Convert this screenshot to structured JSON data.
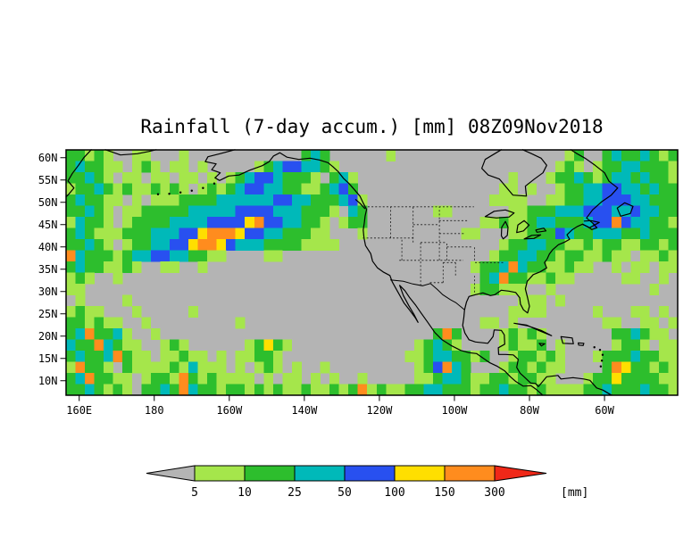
{
  "title": "Rainfall (7-day accum.) [mm] 08Z09Nov2018",
  "chart_data": {
    "type": "heatmap",
    "title": "Rainfall (7-day accum.) [mm] 08Z09Nov2018",
    "variable": "7-day accumulated rainfall",
    "units": "mm",
    "valid_time_label": "08Z09Nov2018",
    "x_tick_labels": [
      "160E",
      "180",
      "160W",
      "140W",
      "120W",
      "100W",
      "80W",
      "60W"
    ],
    "x_tick_lons_deg_east": [
      160,
      180,
      200,
      220,
      240,
      260,
      280,
      300
    ],
    "y_tick_labels": [
      "60N",
      "55N",
      "50N",
      "45N",
      "40N",
      "35N",
      "30N",
      "25N",
      "20N",
      "15N",
      "10N"
    ],
    "y_tick_lats": [
      60,
      55,
      50,
      45,
      40,
      35,
      30,
      25,
      20,
      15,
      10
    ],
    "lon_range_deg_east": [
      156.5,
      319.5
    ],
    "lat_range_deg_north": [
      6.75,
      61.75
    ],
    "levels_mm": [
      5,
      10,
      25,
      50,
      100,
      150,
      300
    ],
    "grid_lines": false,
    "legend_position": "bottom-center",
    "grid": {
      "cols": 65,
      "rows": 22,
      "cell_size_deg": 2.5,
      "origin": "top-left = 61.75N, 156.5E",
      "encoding": "each char = rainfall class 0-7: 0=<5mm(gray) 1=5-10 2=10-25 3=25-50 4=50-100 5=100-150 6=150-300 7=>300mm",
      "class_colors": [
        "#b4b4b4",
        "#a5e64b",
        "#2dbe2d",
        "#00b9b9",
        "#2850f0",
        "#ffdf00",
        "#ff8c1e",
        "#f02818"
      ],
      "rows_data": [
        "22121001100010000000000002320000001000000000000000000120023223212",
        "23221101210110100000123443321000000000000000000000001210122332221",
        "22321011011011010123443222102310000000000000000100012232123323221",
        "12232121121210121234433221123420000000000000001101001223344332322",
        "23221101011122223333334433222341000000000000011110011223344433222",
        "22321011222223333344443332221032000000011000000112223334443343322",
        "13221012222333344445644332210122000000000000112112332223446433221",
        "23211122233344566654433222110001000000000011000112224322333223222",
        "22321012233445665433322221111000000000000000001223322112122112212",
        "63222123344332211000011000000000000000000000012233221221121101121",
        "23221121001100100000000000000000000000000001223632211211001011011",
        "12100100000000000000000000000000000000000000236221121100000110010",
        "11000000000000000000000000000000000000000001221110010000000000100",
        "01000010000000000000000000000000000000000000000011101000000000000",
        "12110001000001000000000000000000000000000000000111100000100011010",
        "22121100100000000010000000000000000000000000110100000000011001101",
        "23622310010000000000000000000000000000026200001212100000002232110",
        "32263211001210000001252100000000000001232100001211201000001221011",
        "23223621101121101011221000000000000011233221200122121000122232211",
        "16221021111213111010121010010000000001246320001221211000026522121",
        "23622110122162121111010110101001000001123321122122110001225222211",
        "22321210223263221221212112112126121122332221223221211112232223221"
      ]
    }
  },
  "colorbar": {
    "segment_labels": [
      "5",
      "10",
      "25",
      "50",
      "100",
      "150",
      "300"
    ],
    "segment_colors": [
      "#a5e64b",
      "#2dbe2d",
      "#00b9b9",
      "#2850f0",
      "#ffdf00",
      "#ff8c1e"
    ],
    "under_arrow_color": "#b4b4b4",
    "over_arrow_color": "#f02818",
    "unit_label": "[mm]"
  }
}
